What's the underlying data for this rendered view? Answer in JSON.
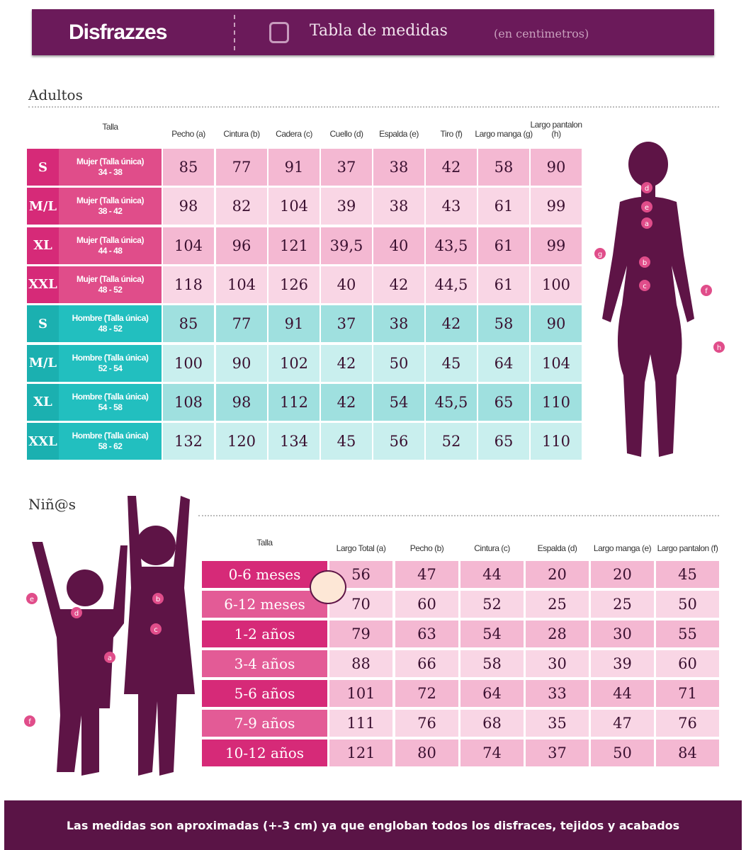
{
  "header": {
    "brand": "Disfrazzes",
    "title": "Tabla de medidas",
    "unit_note": "(en centimetros)",
    "icon": "measuring-tape-icon"
  },
  "colors": {
    "header": "#6b1a5a",
    "women_size": "#d62a78",
    "women_desc": "#e04d8a",
    "women_cell_a": "#f4b8d2",
    "women_cell_b": "#f9d6e5",
    "men_size": "#1bb0b0",
    "men_desc": "#22bfbf",
    "men_cell_a": "#9fe0df",
    "men_cell_b": "#c9efee",
    "silhouette": "#5e1446"
  },
  "adults": {
    "section_title": "Adultos",
    "size_header": "Talla",
    "columns": [
      "Pecho (a)",
      "Cintura (b)",
      "Cadera (c)",
      "Cuello (d)",
      "Espalda (e)",
      "Tiro (f)",
      "Largo manga (g)",
      "Largo pantalon (h)"
    ],
    "rows": [
      {
        "group": "women",
        "size": "S",
        "desc": "Mujer (Talla única)",
        "range": "34 - 38",
        "values": [
          "85",
          "77",
          "91",
          "37",
          "38",
          "42",
          "58",
          "90"
        ]
      },
      {
        "group": "women",
        "size": "M/L",
        "desc": "Mujer (Talla única)",
        "range": "38 - 42",
        "values": [
          "98",
          "82",
          "104",
          "39",
          "38",
          "43",
          "61",
          "99"
        ]
      },
      {
        "group": "women",
        "size": "XL",
        "desc": "Mujer (Talla única)",
        "range": "44 - 48",
        "values": [
          "104",
          "96",
          "121",
          "39,5",
          "40",
          "43,5",
          "61",
          "99"
        ]
      },
      {
        "group": "women",
        "size": "XXL",
        "desc": "Mujer (Talla única)",
        "range": "48 - 52",
        "values": [
          "118",
          "104",
          "126",
          "40",
          "42",
          "44,5",
          "61",
          "100"
        ]
      },
      {
        "group": "men",
        "size": "S",
        "desc": "Hombre (Talla única)",
        "range": "48 - 52",
        "values": [
          "85",
          "77",
          "91",
          "37",
          "38",
          "42",
          "58",
          "90"
        ]
      },
      {
        "group": "men",
        "size": "M/L",
        "desc": "Hombre (Talla única)",
        "range": "52 - 54",
        "values": [
          "100",
          "90",
          "102",
          "42",
          "50",
          "45",
          "64",
          "104"
        ]
      },
      {
        "group": "men",
        "size": "XL",
        "desc": "Hombre (Talla única)",
        "range": "54 - 58",
        "values": [
          "108",
          "98",
          "112",
          "42",
          "54",
          "45,5",
          "65",
          "110"
        ]
      },
      {
        "group": "men",
        "size": "XXL",
        "desc": "Hombre (Talla única)",
        "range": "58 - 62",
        "values": [
          "132",
          "120",
          "134",
          "45",
          "56",
          "52",
          "65",
          "110"
        ]
      }
    ],
    "figure_labels": [
      "d",
      "e",
      "a",
      "g",
      "b",
      "c",
      "f",
      "h"
    ]
  },
  "kids": {
    "section_title": "Niñ@s",
    "size_header": "Talla",
    "columns": [
      "Largo Total (a)",
      "Pecho (b)",
      "Cintura (c)",
      "Espalda (d)",
      "Largo manga (e)",
      "Largo pantalon (f)"
    ],
    "rows": [
      {
        "size": "0-6 meses",
        "values": [
          "56",
          "47",
          "44",
          "20",
          "20",
          "45"
        ]
      },
      {
        "size": "6-12 meses",
        "values": [
          "70",
          "60",
          "52",
          "25",
          "25",
          "50"
        ]
      },
      {
        "size": "1-2 años",
        "values": [
          "79",
          "63",
          "54",
          "28",
          "30",
          "55"
        ]
      },
      {
        "size": "3-4 años",
        "values": [
          "88",
          "66",
          "58",
          "30",
          "39",
          "60"
        ]
      },
      {
        "size": "5-6 años",
        "values": [
          "101",
          "72",
          "64",
          "33",
          "44",
          "71"
        ]
      },
      {
        "size": "7-9 años",
        "values": [
          "111",
          "76",
          "68",
          "35",
          "47",
          "76"
        ]
      },
      {
        "size": "10-12 años",
        "values": [
          "121",
          "80",
          "74",
          "37",
          "50",
          "84"
        ]
      }
    ],
    "figure_labels": [
      "e",
      "d",
      "a",
      "f",
      "b",
      "c"
    ]
  },
  "footer": {
    "note": "Las medidas son aproximadas (+-3 cm) ya que engloban todos los disfraces, tejidos y acabados"
  }
}
